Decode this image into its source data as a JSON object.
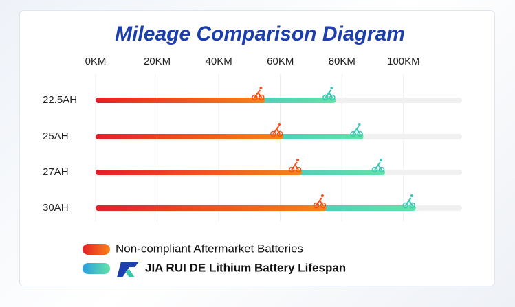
{
  "chart_data": {
    "type": "bar",
    "orientation": "horizontal",
    "title": "Mileage Comparison Diagram",
    "categories": [
      "22.5AH",
      "25AH",
      "27AH",
      "30AH"
    ],
    "series": [
      {
        "name": "Non-compliant Aftermarket Batteries",
        "color": "#f0501e",
        "values": [
          55,
          61,
          67,
          75
        ]
      },
      {
        "name": "JIA RUI DE Lithium Battery Lifespan",
        "color": "#3cc7b5",
        "values": [
          78,
          87,
          94,
          104
        ]
      }
    ],
    "xlim": [
      0,
      119
    ],
    "xticks": [
      {
        "value": 0,
        "label": "0KM"
      },
      {
        "value": 20,
        "label": "20KM"
      },
      {
        "value": 40,
        "label": "40KM"
      },
      {
        "value": 60,
        "label": "60KM"
      },
      {
        "value": 80,
        "label": "80KM"
      },
      {
        "value": 100,
        "label": "100KM"
      }
    ],
    "grid": true,
    "legend": "bottom"
  }
}
